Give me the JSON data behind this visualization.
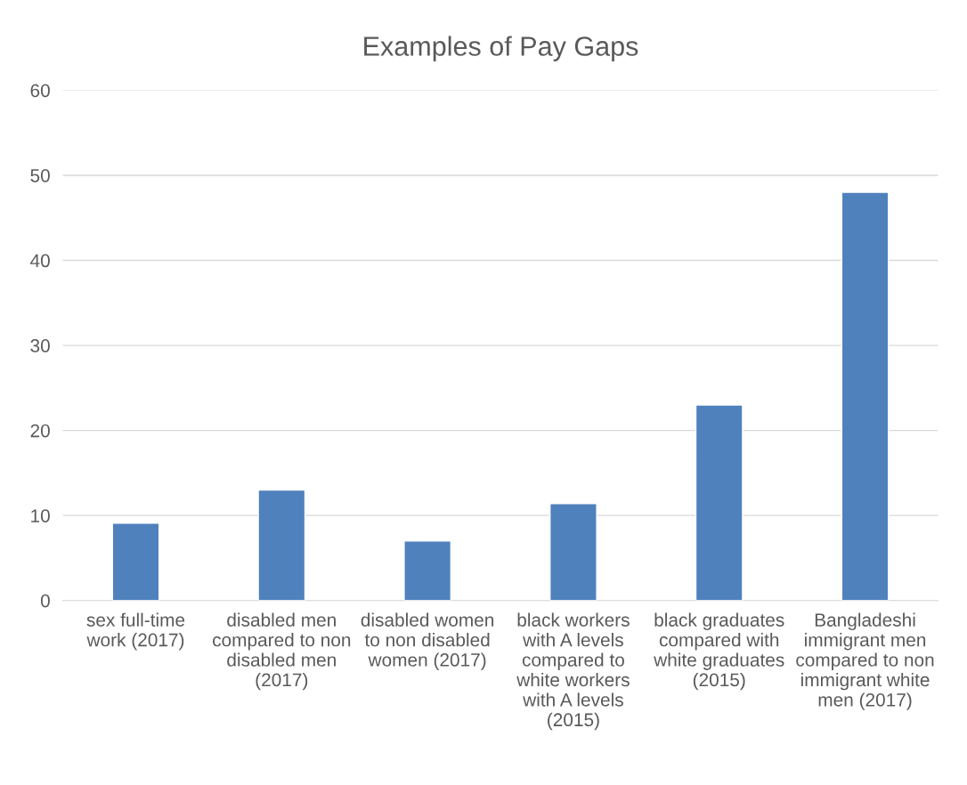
{
  "chart_data": {
    "type": "bar",
    "title": "Examples of Pay Gaps",
    "categories": [
      "sex full-time work (2017)",
      "disabled men compared to non disabled men (2017)",
      "disabled women to non disabled women (2017)",
      "black workers with A levels compared to white workers with A levels (2015)",
      "black graduates compared with white graduates (2015)",
      "Bangladeshi immigrant men compared to non immigrant white men (2017)"
    ],
    "values": [
      9.1,
      13,
      7,
      11.4,
      23,
      48
    ],
    "color": "#4f81bd",
    "ylim": [
      0,
      60
    ],
    "yticks": [
      0,
      10,
      20,
      30,
      40,
      50,
      60
    ],
    "grid": "y"
  }
}
